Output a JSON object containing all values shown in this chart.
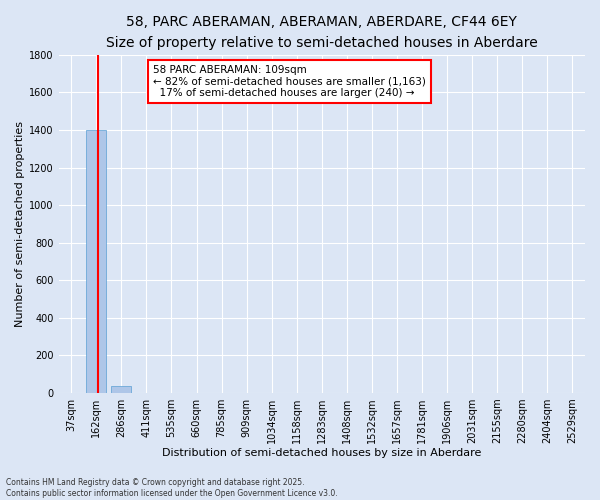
{
  "title": "58, PARC ABERAMAN, ABERAMAN, ABERDARE, CF44 6EY",
  "subtitle": "Size of property relative to semi-detached houses in Aberdare",
  "xlabel": "Distribution of semi-detached houses by size in Aberdare",
  "ylabel": "Number of semi-detached properties",
  "categories": [
    "37sqm",
    "162sqm",
    "286sqm",
    "411sqm",
    "535sqm",
    "660sqm",
    "785sqm",
    "909sqm",
    "1034sqm",
    "1158sqm",
    "1283sqm",
    "1408sqm",
    "1532sqm",
    "1657sqm",
    "1781sqm",
    "1906sqm",
    "2031sqm",
    "2155sqm",
    "2280sqm",
    "2404sqm",
    "2529sqm"
  ],
  "values": [
    0,
    1400,
    35,
    0,
    0,
    0,
    0,
    0,
    0,
    0,
    0,
    0,
    0,
    0,
    0,
    0,
    0,
    0,
    0,
    0,
    0
  ],
  "bar_color": "#aec6e8",
  "bar_edge_color": "#5a9fd4",
  "property_line_x": 1.05,
  "annotation_line1": "58 PARC ABERAMAN: 109sqm",
  "annotation_line2": "← 82% of semi-detached houses are smaller (1,163)",
  "annotation_line3": "  17% of semi-detached houses are larger (240) →",
  "annotation_box_color": "#cc0000",
  "ylim": [
    0,
    1800
  ],
  "yticks": [
    0,
    200,
    400,
    600,
    800,
    1000,
    1200,
    1400,
    1600,
    1800
  ],
  "background_color": "#dce6f5",
  "plot_bg_color": "#dce6f5",
  "grid_color": "#ffffff",
  "footer_text": "Contains HM Land Registry data © Crown copyright and database right 2025.\nContains public sector information licensed under the Open Government Licence v3.0.",
  "title_fontsize": 10,
  "subtitle_fontsize": 9,
  "xlabel_fontsize": 8,
  "ylabel_fontsize": 8,
  "tick_fontsize": 7,
  "annot_fontsize": 7.5
}
